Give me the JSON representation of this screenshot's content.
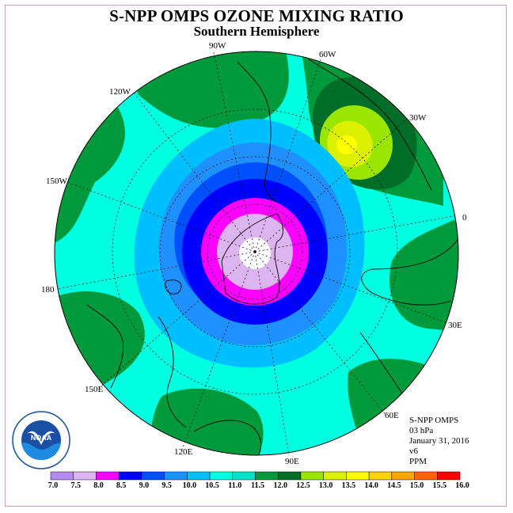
{
  "title": "S-NPP OMPS OZONE MIXING RATIO",
  "subtitle": "Southern Hemisphere",
  "lon_labels": [
    "90W",
    "60W",
    "30W",
    "0",
    "30E",
    "60E",
    "90E",
    "120E",
    "150E",
    "180",
    "150W",
    "120W"
  ],
  "info": {
    "product": "S-NPP OMPS",
    "level": "03 hPa",
    "date": "January 31, 2016",
    "version": "v6",
    "units": "PPM"
  },
  "logo": {
    "text": "NOAA",
    "ring_text": "NATIONAL OCEANIC AND ATMOSPHERIC ADMINISTRATION  U.S. DEPARTMENT OF COMMERCE"
  },
  "colorbar": {
    "ticks": [
      "7.0",
      "7.5",
      "8.0",
      "8.5",
      "9.0",
      "9.5",
      "10.0",
      "10.5",
      "11.0",
      "11.5",
      "12.0",
      "12.5",
      "13.0",
      "13.5",
      "14.0",
      "14.5",
      "15.0",
      "15.5",
      "16.0"
    ],
    "colors": [
      "#b48cf0",
      "#dcb4f0",
      "#ff00ff",
      "#0000ff",
      "#0050ff",
      "#1e90ff",
      "#00bfff",
      "#00ffe0",
      "#00e0c8",
      "#009a3c",
      "#006e28",
      "#9be600",
      "#dcf000",
      "#ffff00",
      "#ffd200",
      "#ffa500",
      "#ff6400",
      "#ff0000",
      "#8c5a3c"
    ]
  }
}
